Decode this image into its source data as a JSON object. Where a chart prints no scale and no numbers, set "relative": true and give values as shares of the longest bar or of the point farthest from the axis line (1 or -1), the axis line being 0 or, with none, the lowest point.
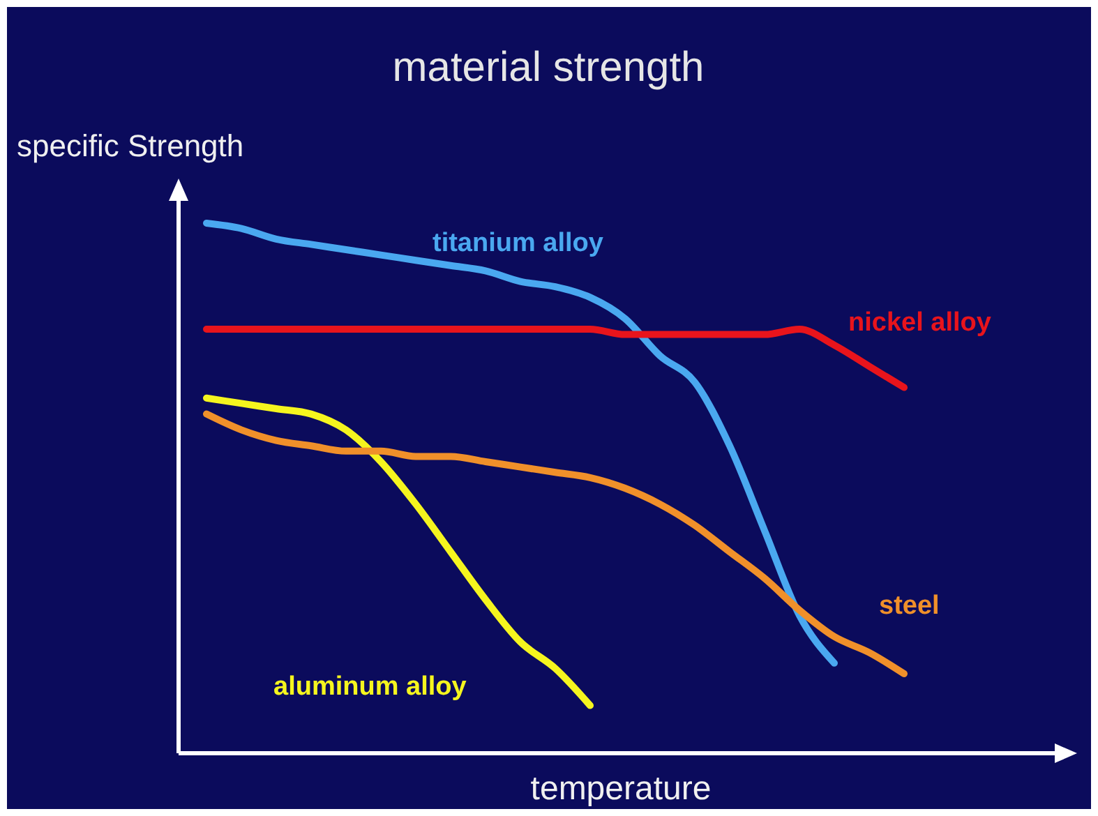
{
  "chart_data": {
    "type": "line",
    "title": "material strength",
    "ylabel": "specific Strength",
    "xlabel": "temperature",
    "relative": true,
    "marker": "none",
    "line_style": "solid",
    "categories": [
      null,
      null,
      null,
      null,
      null,
      null,
      null,
      null,
      null,
      null,
      null,
      null,
      null,
      null,
      null,
      null,
      null,
      null,
      null,
      null,
      null,
      null
    ],
    "series": [
      {
        "name": "titanium alloy",
        "color": "#4aa8f0",
        "values": [
          1.0,
          0.99,
          0.97,
          0.96,
          0.95,
          0.94,
          0.93,
          0.92,
          0.91,
          0.89,
          0.88,
          0.86,
          0.82,
          0.75,
          0.7,
          0.58,
          0.42,
          0.26,
          0.17,
          null,
          null,
          null
        ]
      },
      {
        "name": "nickel alloy",
        "color": "#e8141c",
        "values": [
          0.8,
          0.8,
          0.8,
          0.8,
          0.8,
          0.8,
          0.8,
          0.8,
          0.8,
          0.8,
          0.8,
          0.8,
          0.79,
          0.79,
          0.79,
          0.79,
          0.79,
          0.8,
          0.77,
          0.73,
          0.69,
          null
        ]
      },
      {
        "name": "aluminum alloy",
        "color": "#f5f51e",
        "values": [
          0.67,
          0.66,
          0.65,
          0.64,
          0.61,
          0.55,
          0.47,
          0.38,
          0.29,
          0.21,
          0.16,
          0.09,
          null,
          null,
          null,
          null,
          null,
          null,
          null,
          null,
          null,
          null
        ]
      },
      {
        "name": "steel",
        "color": "#f0902a",
        "values": [
          0.64,
          0.61,
          0.59,
          0.58,
          0.57,
          0.57,
          0.56,
          0.56,
          0.55,
          0.54,
          0.53,
          0.52,
          0.5,
          0.47,
          0.43,
          0.38,
          0.33,
          0.27,
          0.22,
          0.19,
          0.15,
          null
        ]
      }
    ]
  }
}
